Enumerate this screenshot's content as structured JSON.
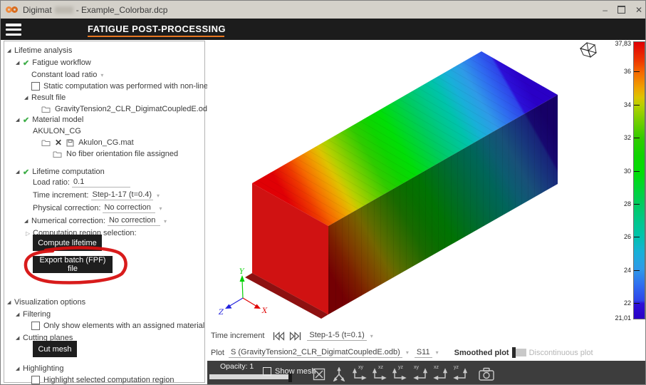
{
  "window": {
    "app_name": "Digimat",
    "doc_name": "- Example_Colorbar.dcp",
    "minimize": "–",
    "close": "✕"
  },
  "header": {
    "title": "FATIGUE POST-PROCESSING",
    "accent_color": "#e87722"
  },
  "sidebar": {
    "lifetime_analysis": "Lifetime analysis",
    "fatigue_workflow": "Fatigue workflow",
    "load_ratio_mode": "Constant load ratio",
    "static_checkbox": "Static computation was performed with non-linear behavior",
    "result_file": "Result file",
    "result_file_name": "GravityTension2_CLR_DigimatCoupledE.odb",
    "material_model": "Material model",
    "material_name": "AKULON_CG",
    "material_file": "Akulon_CG.mat",
    "fiber_orientation": "No fiber orientation file assigned",
    "lifetime_computation": "Lifetime computation",
    "load_ratio_label": "Load ratio:",
    "load_ratio_value": "0.1",
    "time_increment_label": "Time increment:",
    "time_increment_value": "Step-1-17 (t=0.4)",
    "physical_correction_label": "Physical correction:",
    "physical_correction_value": "No correction",
    "numerical_correction_label": "Numerical correction:",
    "numerical_correction_value": "No correction",
    "computation_region": "Computation region selection:",
    "compute_button": "Compute lifetime",
    "export_button": "Export batch (FPF) file",
    "visualization_options": "Visualization options",
    "filtering": "Filtering",
    "filtering_checkbox": "Only show elements with an assigned material",
    "cutting_planes": "Cutting planes",
    "cut_mesh_button": "Cut mesh",
    "highlighting": "Highlighting",
    "highlighting_checkbox": "Highlight selected computation region",
    "annotation_color": "#d60f0f"
  },
  "viewport": {
    "axes": {
      "x": "X",
      "y": "Y",
      "z": "Z"
    },
    "colorbar": {
      "ticks": [
        {
          "label": "37,83"
        },
        {
          "label": "36"
        },
        {
          "label": "34"
        },
        {
          "label": "32"
        },
        {
          "label": "30"
        },
        {
          "label": "28"
        },
        {
          "label": "26"
        },
        {
          "label": "24"
        },
        {
          "label": "22"
        },
        {
          "label": "21,01"
        }
      ],
      "colormap": [
        [
          0.0,
          "#e00005"
        ],
        [
          0.07,
          "#ee3a00"
        ],
        [
          0.11,
          "#f56a00"
        ],
        [
          0.165,
          "#efa200"
        ],
        [
          0.2,
          "#ddc400"
        ],
        [
          0.23,
          "#b5d000"
        ],
        [
          0.29,
          "#6fce00"
        ],
        [
          0.35,
          "#30cb00"
        ],
        [
          0.41,
          "#0fd400"
        ],
        [
          0.47,
          "#00de06"
        ],
        [
          0.53,
          "#00d435"
        ],
        [
          0.585,
          "#00cb60"
        ],
        [
          0.645,
          "#00c78a"
        ],
        [
          0.7,
          "#00c3ab"
        ],
        [
          0.76,
          "#18b0d8"
        ],
        [
          0.82,
          "#2f9ae8"
        ],
        [
          0.88,
          "#2f6cf0"
        ],
        [
          0.935,
          "#2e44ea"
        ],
        [
          0.945,
          "#2c10d8"
        ],
        [
          1.0,
          "#2a00c6"
        ]
      ]
    }
  },
  "controls": {
    "time_label": "Time increment",
    "time_value": "Step-1-5 (t=0.1)",
    "plot_label": "Plot",
    "plot_source": "S (GravityTension2_CLR_DigimatCoupledE.odb)",
    "plot_component": "S11",
    "smoothed": "Smoothed plot",
    "discontinuous": "Discontinuous plot"
  },
  "toolbar": {
    "opacity": "Opacity: 1",
    "show_mesh": "Show mesh",
    "view_labels": [
      "xy",
      "xz",
      "yz",
      "xy",
      "xz",
      "yz"
    ]
  }
}
